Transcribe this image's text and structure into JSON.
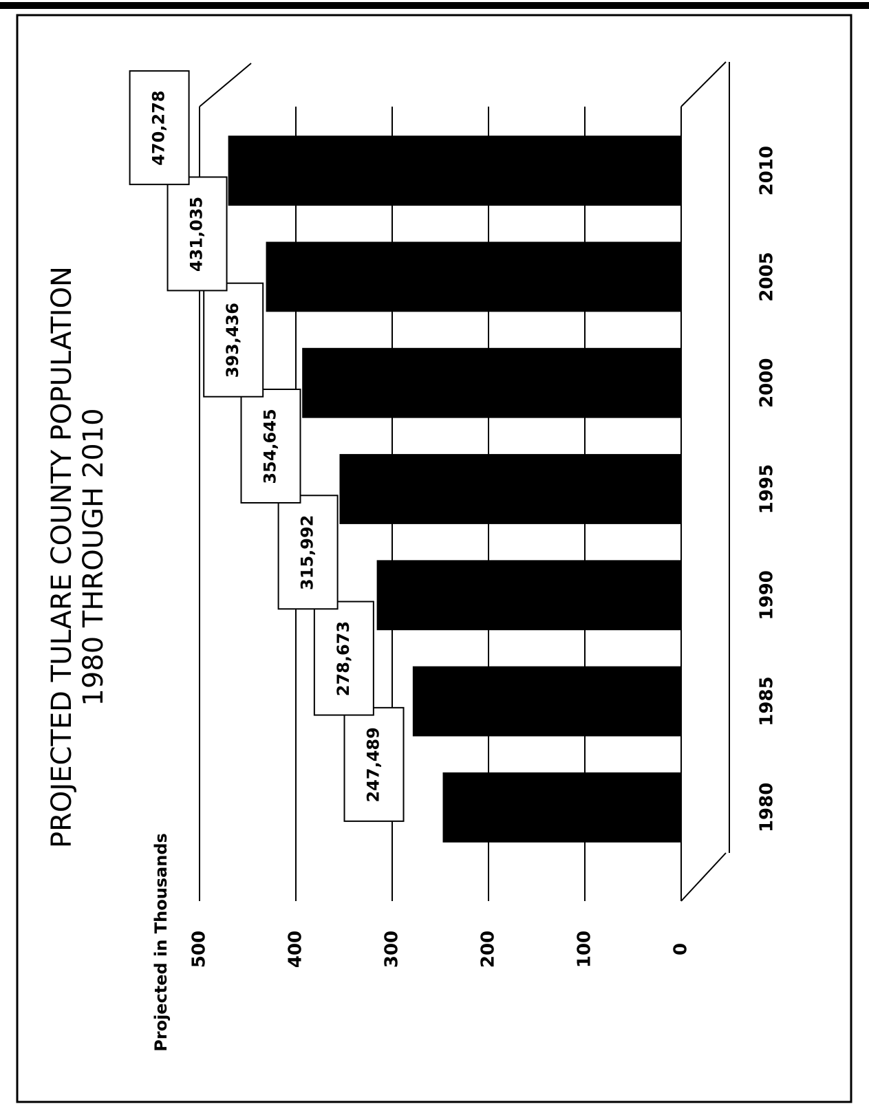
{
  "chart_data": {
    "type": "bar",
    "title": "PROJECTED TULARE COUNTY POPULATION",
    "subtitle": "1980 THROUGH 2010",
    "y_label": "Projected in Thousands",
    "categories": [
      "1980",
      "1985",
      "1990",
      "1995",
      "2000",
      "2005",
      "2010"
    ],
    "values": [
      247.489,
      278.673,
      315.992,
      354.645,
      393.436,
      431.035,
      470.278
    ],
    "value_labels": [
      "247,489",
      "278,673",
      "315,992",
      "354,645",
      "393,436",
      "431,035",
      "470,278"
    ],
    "color": "#000000",
    "ylim": [
      0,
      500
    ],
    "yticks": [
      0,
      100,
      200,
      300,
      400,
      500
    ],
    "grid": true
  }
}
